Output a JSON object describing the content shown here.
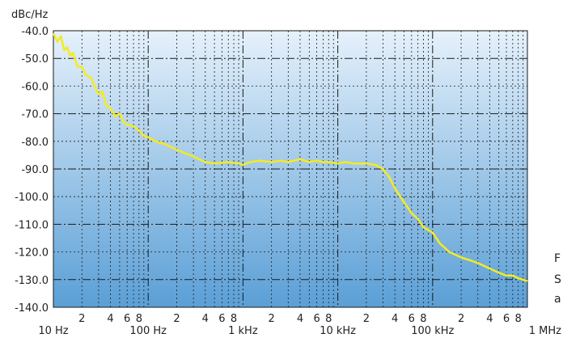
{
  "chart_data": {
    "type": "line",
    "ylabel": "dBc/Hz",
    "xscale": "log",
    "xlim": [
      10,
      1000000
    ],
    "ylim": [
      -140,
      -40
    ],
    "yticks": [
      -40,
      -50,
      -60,
      -70,
      -80,
      -90,
      -100,
      -110,
      -120,
      -130,
      -140
    ],
    "ytick_labels": [
      "-40.0",
      "-50.0",
      "-60.0",
      "-70.0",
      "-80.0",
      "-90.0",
      "-100.0",
      "-110.0",
      "-120.0",
      "-130.0",
      "-140.0"
    ],
    "xticks": [
      10,
      100,
      1000,
      10000,
      100000,
      1000000
    ],
    "xtick_labels": [
      "10 Hz",
      "100 Hz",
      "1 kHz",
      "10 kHz",
      "100 kHz",
      "1 MHz"
    ],
    "minor_tick_labels": [
      "2",
      "4",
      "6",
      "8"
    ],
    "grid": true,
    "colors": {
      "line": "#f5eb1e",
      "background_top": "#e6f1fb",
      "background_bottom": "#5a9fd6",
      "grid": "#1a1a1a"
    },
    "series": [
      {
        "x": [
          10,
          11,
          12,
          13,
          14,
          15,
          16,
          18,
          20,
          22,
          25,
          28,
          30,
          33,
          36,
          40,
          45,
          50,
          55,
          60,
          70,
          80,
          90,
          100,
          120,
          150,
          200,
          300,
          400,
          500,
          700,
          900,
          1000,
          1200,
          1500,
          2000,
          2500,
          3000,
          4000,
          5000,
          6000,
          7000,
          8000,
          10000,
          12000,
          15000,
          20000,
          25000,
          30000,
          35000,
          40000,
          50000,
          60000,
          70000,
          80000,
          100000,
          120000,
          150000,
          200000,
          250000,
          300000,
          400000,
          500000,
          600000,
          700000,
          800000,
          1000000
        ],
        "y": [
          -41,
          -44,
          -42,
          -47,
          -46,
          -49,
          -48,
          -53,
          -53,
          -56,
          -57,
          -61,
          -63,
          -62,
          -67,
          -68,
          -71,
          -70,
          -73,
          -74,
          -74.5,
          -76,
          -78,
          -78.5,
          -80,
          -81,
          -83,
          -85.5,
          -87.5,
          -88,
          -87.5,
          -88,
          -88.5,
          -87.5,
          -87,
          -87.5,
          -87,
          -87.5,
          -86.5,
          -87.5,
          -87,
          -87.5,
          -87.5,
          -88,
          -87.5,
          -88,
          -88,
          -88.5,
          -90,
          -93,
          -97,
          -102,
          -106,
          -108,
          -111,
          -113,
          -117,
          -120,
          -122,
          -123,
          -124,
          -126,
          -127.5,
          -128.5,
          -128.5,
          -129.5,
          -130.5
        ]
      }
    ]
  },
  "side_text": [
    "F",
    "S",
    "a"
  ]
}
